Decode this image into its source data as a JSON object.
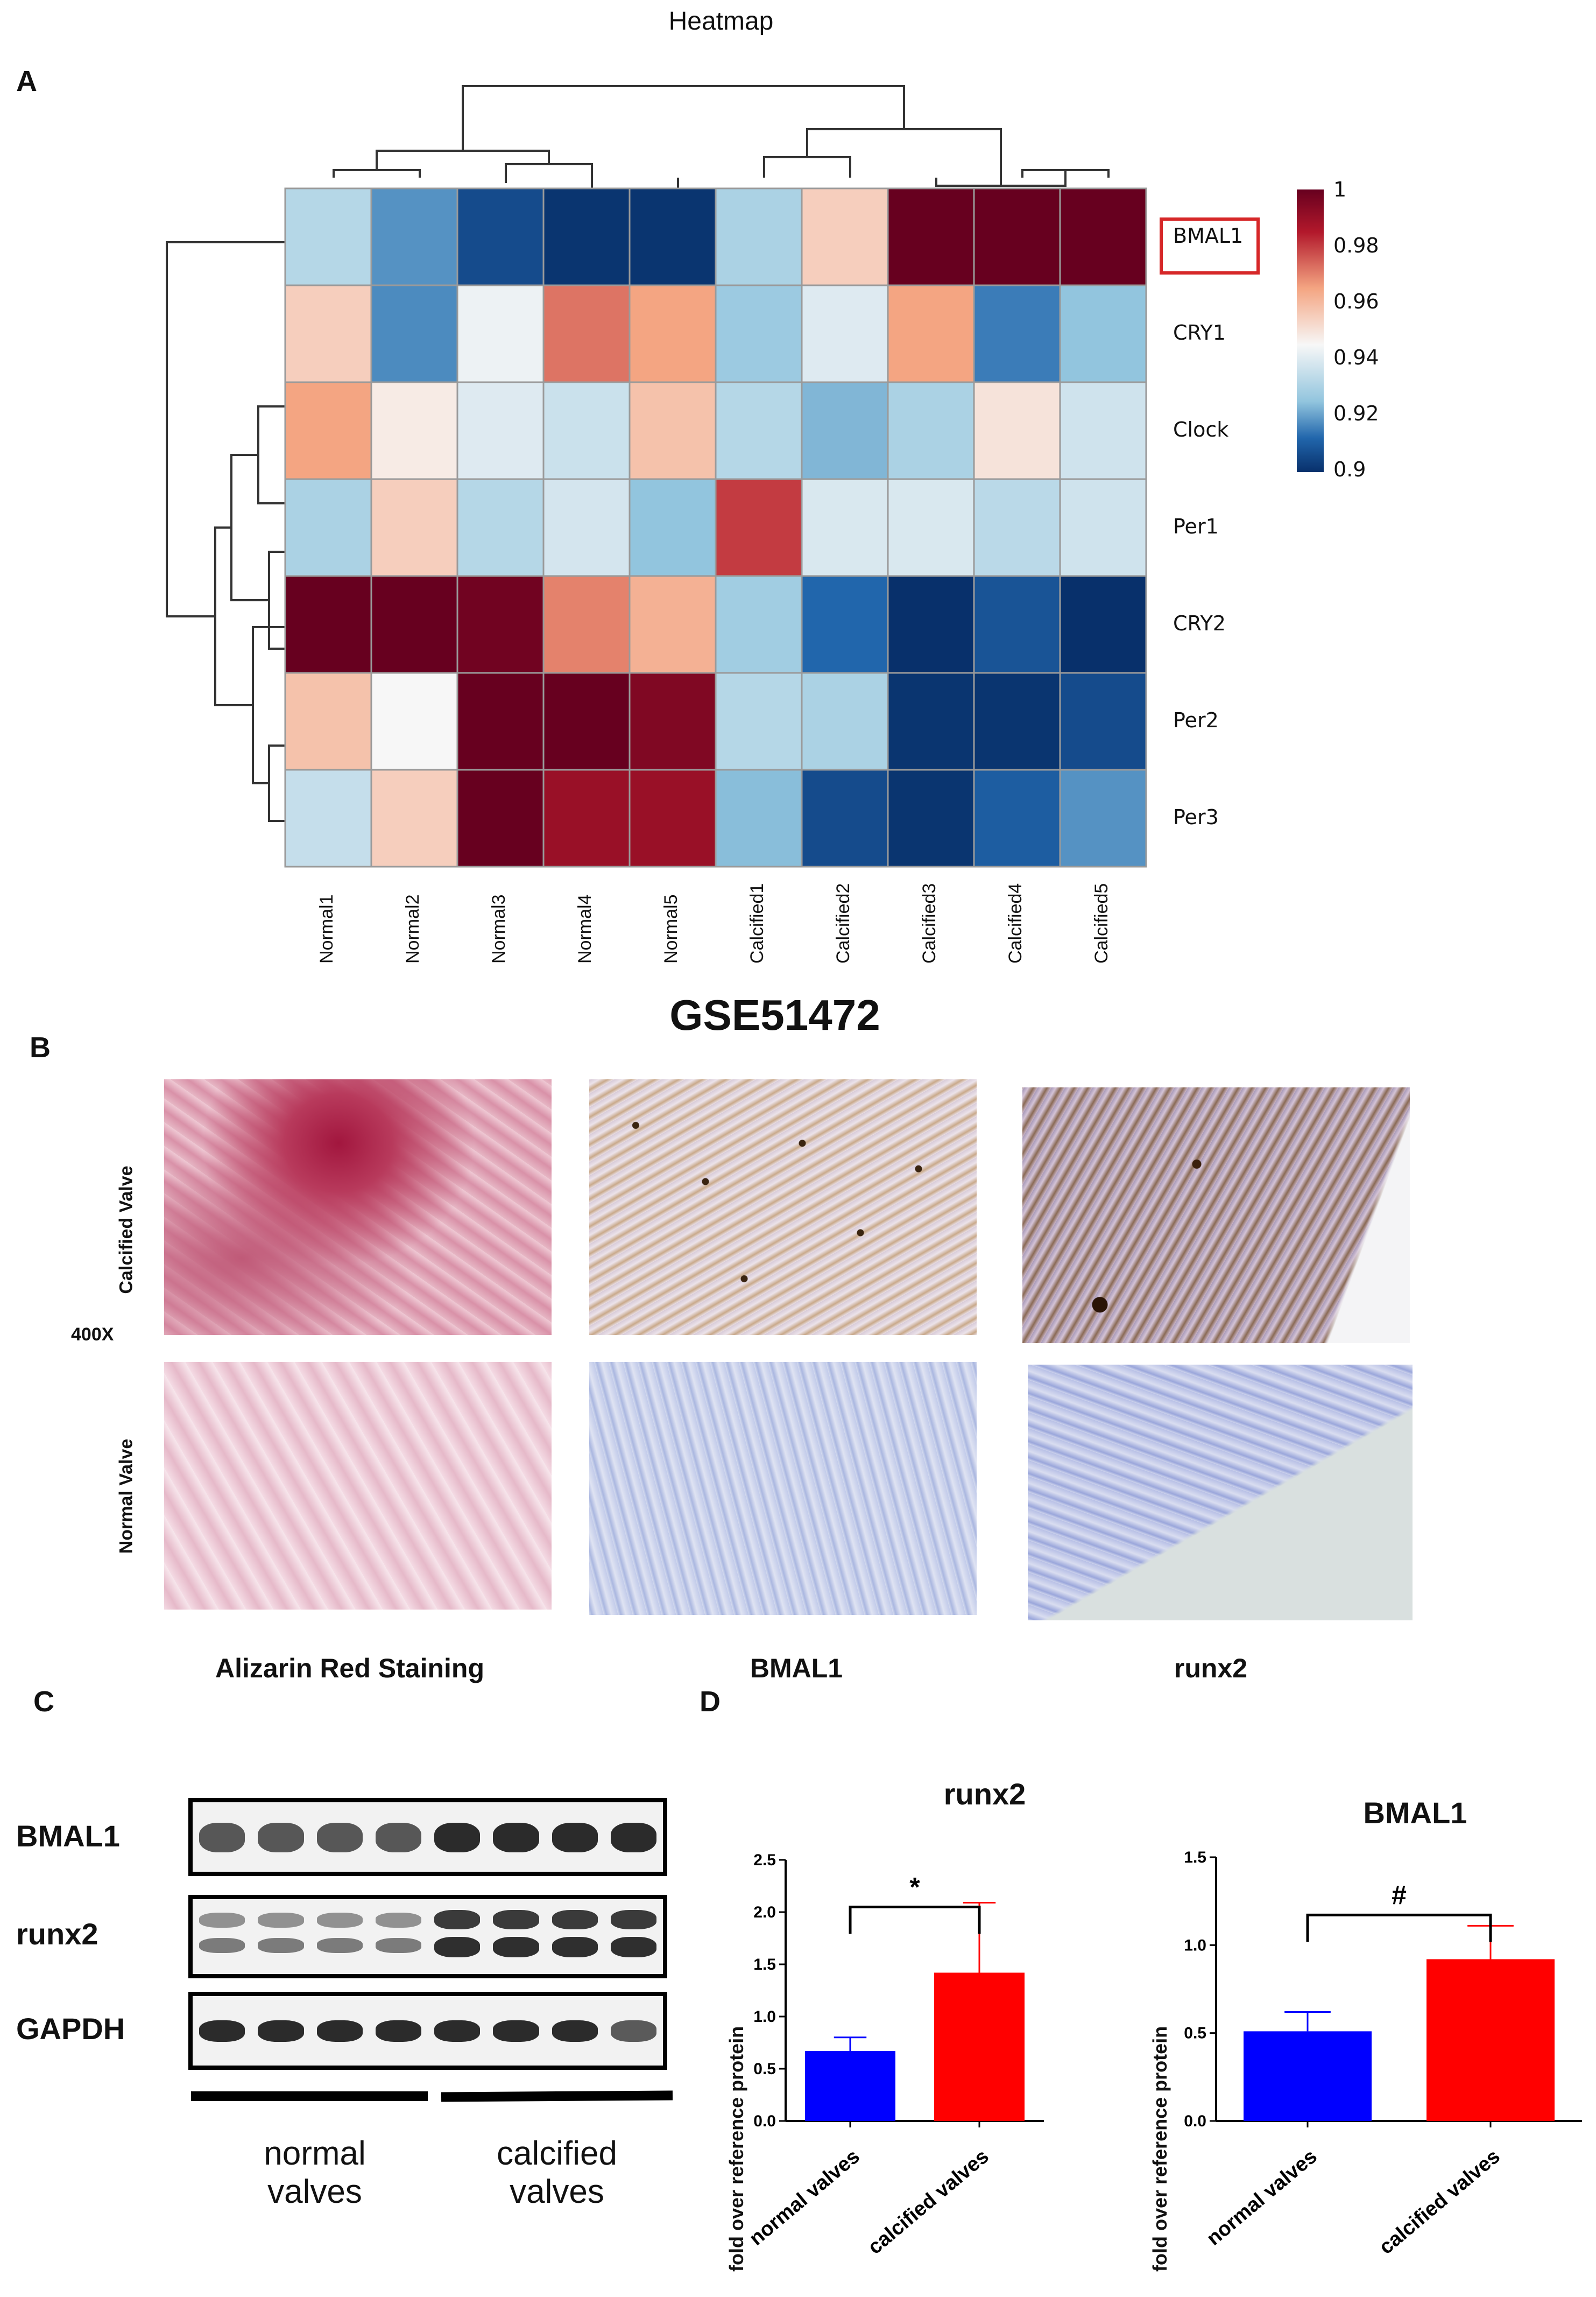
{
  "panel_a": {
    "letter": "A",
    "title": "Heatmap",
    "row_labels": [
      "BMAL1",
      "CRY1",
      "Clock",
      "Per1",
      "CRY2",
      "Per2",
      "Per3"
    ],
    "col_labels": [
      "Normal1",
      "Normal2",
      "Normal3",
      "Normal4",
      "Normal5",
      "Calcified1",
      "Calcified2",
      "Calcified3",
      "Calcified4",
      "Calcified5"
    ],
    "highlighted_row": "BMAL1",
    "highlight_color": "#d62728",
    "color_scale": {
      "ticks": [
        "1",
        "0.98",
        "0.96",
        "0.94",
        "0.92",
        "0.9"
      ],
      "low_color": "#08306b",
      "mid_color": "#f7f7f7",
      "high_color": "#67001f",
      "range": [
        0.9,
        1.0
      ]
    },
    "values": [
      [
        0.932,
        0.918,
        0.906,
        0.901,
        0.901,
        0.93,
        0.955,
        1.0,
        1.0,
        1.0
      ],
      [
        0.955,
        0.917,
        0.943,
        0.972,
        0.965,
        0.927,
        0.94,
        0.965,
        0.915,
        0.925
      ],
      [
        0.965,
        0.948,
        0.94,
        0.936,
        0.958,
        0.932,
        0.923,
        0.93,
        0.95,
        0.937
      ],
      [
        0.93,
        0.955,
        0.932,
        0.938,
        0.925,
        0.98,
        0.939,
        0.939,
        0.933,
        0.937
      ],
      [
        1.0,
        1.0,
        0.998,
        0.97,
        0.962,
        0.928,
        0.912,
        0.9,
        0.908,
        0.9
      ],
      [
        0.958,
        0.945,
        1.0,
        1.0,
        0.995,
        0.932,
        0.93,
        0.901,
        0.901,
        0.906
      ],
      [
        0.935,
        0.955,
        1.0,
        0.99,
        0.99,
        0.924,
        0.906,
        0.901,
        0.91,
        0.918
      ]
    ]
  },
  "panel_b": {
    "letter": "B",
    "dataset": "GSE51472",
    "row_labels": [
      "Calcified Valve",
      "Normal Valve"
    ],
    "magnification": "400X",
    "column_labels": [
      "Alizarin Red Staining",
      "BMAL1",
      "runx2"
    ]
  },
  "panel_c": {
    "letter": "C",
    "blot_labels": [
      "BMAL1",
      "runx2",
      "GAPDH"
    ],
    "group_labels": [
      "normal\nvalves",
      "calcified\nvalves"
    ],
    "lanes": 8
  },
  "panel_d": {
    "letter": "D",
    "ylabel": "fold over reference protein",
    "charts": [
      {
        "title": "runx2",
        "significance": "*",
        "chart_data": {
          "type": "bar",
          "categories": [
            "normal valves",
            "calcified valves"
          ],
          "values": [
            0.67,
            1.42
          ],
          "errors": [
            0.13,
            0.67
          ],
          "colors": [
            "#0000ff",
            "#ff0000"
          ],
          "ylim": [
            0,
            2.5
          ],
          "yticks": [
            "0.0",
            "0.5",
            "1.0",
            "1.5",
            "2.0",
            "2.5"
          ],
          "ylabel": "fold over reference protein"
        }
      },
      {
        "title": "BMAL1",
        "significance": "#",
        "chart_data": {
          "type": "bar",
          "categories": [
            "normal valves",
            "calcified valves"
          ],
          "values": [
            0.51,
            0.92
          ],
          "errors": [
            0.11,
            0.19
          ],
          "colors": [
            "#0000ff",
            "#ff0000"
          ],
          "ylim": [
            0,
            1.5
          ],
          "yticks": [
            "0.0",
            "0.5",
            "1.0",
            "1.5"
          ],
          "ylabel": "fold over reference protein"
        }
      }
    ]
  }
}
